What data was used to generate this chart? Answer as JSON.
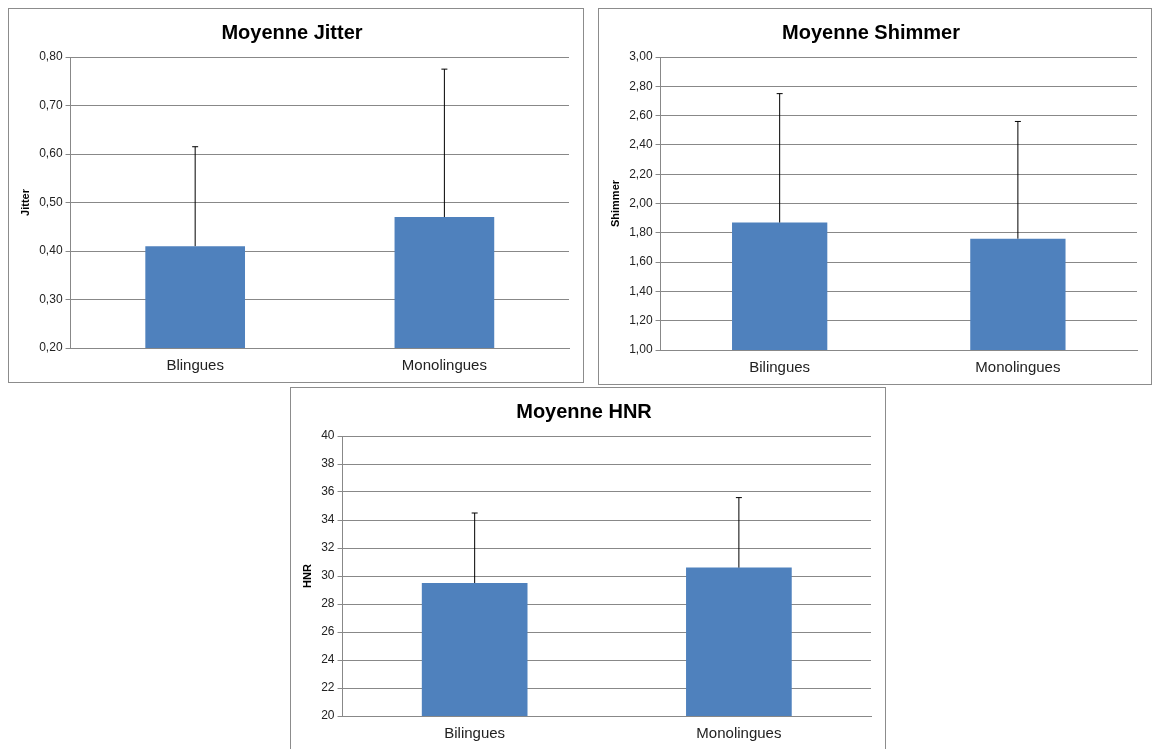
{
  "chart_data": [
    {
      "type": "bar",
      "title": "Moyenne Jitter",
      "ylabel": "Jitter",
      "categories": [
        "Blingues",
        "Monolingues"
      ],
      "series": [
        {
          "color": "#4f81bd",
          "values": [
            0.41,
            0.47
          ],
          "errors": [
            [
              0.41,
              0.615
            ],
            [
              0.47,
              0.775
            ]
          ]
        }
      ],
      "ylim": [
        0.2,
        0.8
      ],
      "yticks": [
        {
          "value": 0.2,
          "label": "0,20"
        },
        {
          "value": 0.3,
          "label": "0,30"
        },
        {
          "value": 0.4,
          "label": "0,40"
        },
        {
          "value": 0.5,
          "label": "0,50"
        },
        {
          "value": 0.6,
          "label": "0,60"
        },
        {
          "value": 0.7,
          "label": "0,70"
        },
        {
          "value": 0.8,
          "label": "0,80"
        }
      ],
      "grid": "y",
      "legend": false
    },
    {
      "type": "bar",
      "title": "Moyenne Shimmer",
      "ylabel": "Shimmer",
      "categories": [
        "Bilingues",
        "Monolingues"
      ],
      "series": [
        {
          "color": "#4f81bd",
          "values": [
            1.87,
            1.76
          ],
          "errors": [
            [
              1.87,
              2.75
            ],
            [
              1.76,
              2.56
            ]
          ]
        }
      ],
      "ylim": [
        1.0,
        3.0
      ],
      "yticks": [
        {
          "value": 1.0,
          "label": "1,00"
        },
        {
          "value": 1.2,
          "label": "1,20"
        },
        {
          "value": 1.4,
          "label": "1,40"
        },
        {
          "value": 1.6,
          "label": "1,60"
        },
        {
          "value": 1.8,
          "label": "1,80"
        },
        {
          "value": 2.0,
          "label": "2,00"
        },
        {
          "value": 2.2,
          "label": "2,20"
        },
        {
          "value": 2.4,
          "label": "2,40"
        },
        {
          "value": 2.6,
          "label": "2,60"
        },
        {
          "value": 2.8,
          "label": "2,80"
        },
        {
          "value": 3.0,
          "label": "3,00"
        }
      ],
      "grid": "y",
      "legend": false
    },
    {
      "type": "bar",
      "title": "Moyenne HNR",
      "ylabel": "HNR",
      "categories": [
        "Bilingues",
        "Monolingues"
      ],
      "series": [
        {
          "color": "#4f81bd",
          "values": [
            29.5,
            30.6
          ],
          "errors": [
            [
              29.5,
              34.5
            ],
            [
              30.6,
              35.6
            ]
          ]
        }
      ],
      "ylim": [
        20,
        40
      ],
      "yticks": [
        20,
        22,
        24,
        26,
        28,
        30,
        32,
        34,
        36,
        38,
        40
      ],
      "grid": "y",
      "legend": false
    }
  ]
}
